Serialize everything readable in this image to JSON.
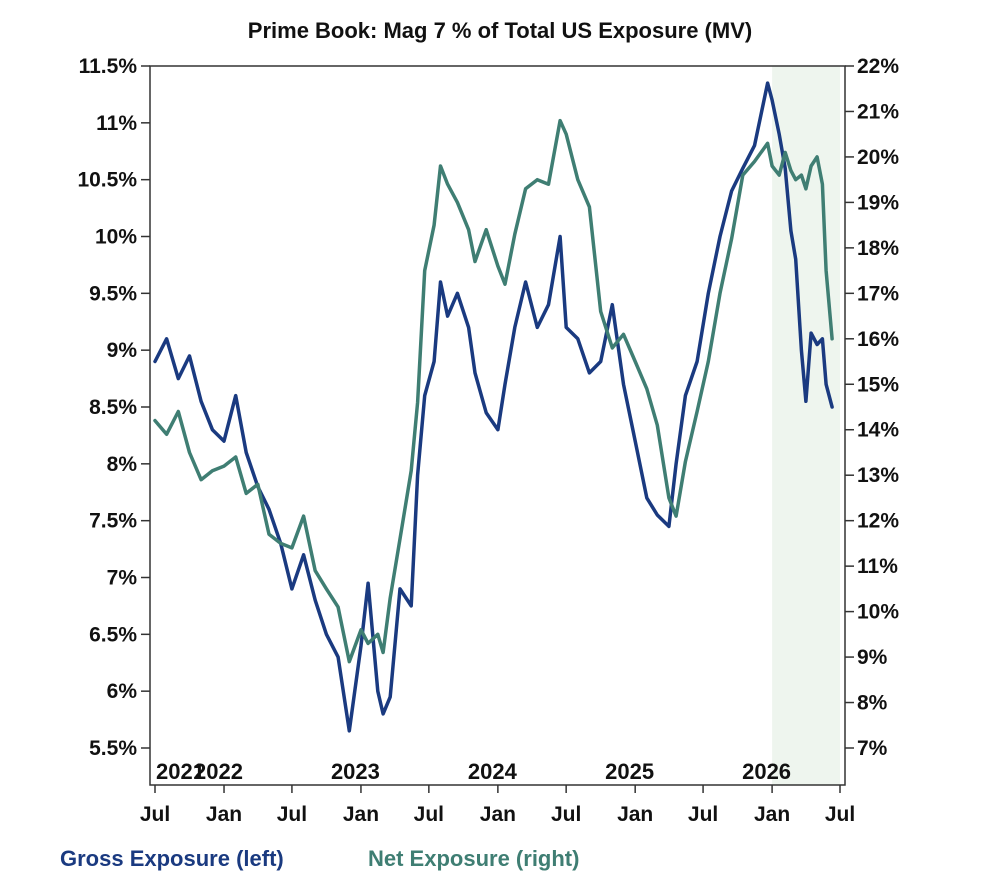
{
  "chart_data": {
    "type": "line",
    "title": "Prime Book: Mag 7 % of Total US Exposure (MV)",
    "x_range": [
      "2021-07-01",
      "2026-07-01"
    ],
    "y_left": {
      "ylim": [
        5.5,
        11.5
      ],
      "ticks": [
        5.5,
        6,
        6.5,
        7,
        7.5,
        8,
        8.5,
        9,
        9.5,
        10,
        10.5,
        11,
        11.5
      ],
      "tick_labels": [
        "5.5%",
        "6%",
        "6.5%",
        "7%",
        "7.5%",
        "8%",
        "8.5%",
        "9%",
        "9.5%",
        "10%",
        "10.5%",
        "11%",
        "11.5%"
      ]
    },
    "y_right": {
      "ylim": [
        7,
        22
      ],
      "ticks": [
        7,
        8,
        9,
        10,
        11,
        12,
        13,
        14,
        15,
        16,
        17,
        18,
        19,
        20,
        21,
        22
      ],
      "tick_labels": [
        "7%",
        "8%",
        "9%",
        "10%",
        "11%",
        "12%",
        "13%",
        "14%",
        "15%",
        "16%",
        "17%",
        "18%",
        "19%",
        "20%",
        "21%",
        "22%"
      ]
    },
    "x_ticks": [
      {
        "date": "2021-07-01",
        "label": "Jul"
      },
      {
        "date": "2022-01-01",
        "label": "Jan"
      },
      {
        "date": "2022-07-01",
        "label": "Jul"
      },
      {
        "date": "2023-01-01",
        "label": "Jan"
      },
      {
        "date": "2023-07-01",
        "label": "Jul"
      },
      {
        "date": "2024-01-01",
        "label": "Jan"
      },
      {
        "date": "2024-07-01",
        "label": "Jul"
      },
      {
        "date": "2025-01-01",
        "label": "Jan"
      },
      {
        "date": "2025-07-01",
        "label": "Jul"
      },
      {
        "date": "2026-01-01",
        "label": "Jan"
      },
      {
        "date": "2026-07-01",
        "label": "Jul"
      }
    ],
    "year_labels": [
      {
        "date": "2021-07-01",
        "label": "2021"
      },
      {
        "date": "2022-01-01",
        "label": "2022"
      },
      {
        "date": "2023-01-01",
        "label": "2023"
      },
      {
        "date": "2024-01-01",
        "label": "2024"
      },
      {
        "date": "2025-01-01",
        "label": "2025"
      },
      {
        "date": "2026-01-01",
        "label": "2026"
      }
    ],
    "shaded_region": {
      "start": "2026-01-01",
      "end": "2026-07-01",
      "color": "#eef5ee"
    },
    "series": [
      {
        "name": "Gross Exposure (left)",
        "axis": "left",
        "color": "#1a3a80",
        "points": [
          [
            "2021-07-01",
            8.9
          ],
          [
            "2021-08-01",
            9.1
          ],
          [
            "2021-09-01",
            8.75
          ],
          [
            "2021-10-01",
            8.95
          ],
          [
            "2021-11-01",
            8.55
          ],
          [
            "2021-12-01",
            8.3
          ],
          [
            "2022-01-01",
            8.2
          ],
          [
            "2022-02-01",
            8.6
          ],
          [
            "2022-03-01",
            8.1
          ],
          [
            "2022-04-01",
            7.8
          ],
          [
            "2022-05-01",
            7.6
          ],
          [
            "2022-06-01",
            7.3
          ],
          [
            "2022-07-01",
            6.9
          ],
          [
            "2022-08-01",
            7.2
          ],
          [
            "2022-09-01",
            6.8
          ],
          [
            "2022-10-01",
            6.5
          ],
          [
            "2022-11-01",
            6.3
          ],
          [
            "2022-12-01",
            5.65
          ],
          [
            "2023-01-01",
            6.4
          ],
          [
            "2023-01-20",
            6.95
          ],
          [
            "2023-02-15",
            6.0
          ],
          [
            "2023-03-01",
            5.8
          ],
          [
            "2023-03-20",
            5.95
          ],
          [
            "2023-04-15",
            6.9
          ],
          [
            "2023-05-15",
            6.75
          ],
          [
            "2023-06-01",
            7.9
          ],
          [
            "2023-06-20",
            8.6
          ],
          [
            "2023-07-15",
            8.9
          ],
          [
            "2023-08-01",
            9.6
          ],
          [
            "2023-08-20",
            9.3
          ],
          [
            "2023-09-15",
            9.5
          ],
          [
            "2023-10-15",
            9.2
          ],
          [
            "2023-11-01",
            8.8
          ],
          [
            "2023-12-01",
            8.45
          ],
          [
            "2024-01-01",
            8.3
          ],
          [
            "2024-01-20",
            8.7
          ],
          [
            "2024-02-15",
            9.2
          ],
          [
            "2024-03-15",
            9.6
          ],
          [
            "2024-04-15",
            9.2
          ],
          [
            "2024-05-15",
            9.4
          ],
          [
            "2024-06-15",
            10.0
          ],
          [
            "2024-07-01",
            9.2
          ],
          [
            "2024-08-01",
            9.1
          ],
          [
            "2024-09-01",
            8.8
          ],
          [
            "2024-10-01",
            8.9
          ],
          [
            "2024-11-01",
            9.4
          ],
          [
            "2024-12-01",
            8.7
          ],
          [
            "2025-01-01",
            8.2
          ],
          [
            "2025-02-01",
            7.7
          ],
          [
            "2025-03-01",
            7.55
          ],
          [
            "2025-04-01",
            7.45
          ],
          [
            "2025-04-20",
            8.0
          ],
          [
            "2025-05-15",
            8.6
          ],
          [
            "2025-06-15",
            8.9
          ],
          [
            "2025-07-15",
            9.5
          ],
          [
            "2025-08-15",
            10.0
          ],
          [
            "2025-09-15",
            10.4
          ],
          [
            "2025-10-15",
            10.6
          ],
          [
            "2025-11-15",
            10.8
          ],
          [
            "2025-12-20",
            11.35
          ],
          [
            "2026-01-01",
            11.2
          ],
          [
            "2026-01-20",
            10.9
          ],
          [
            "2026-02-05",
            10.6
          ],
          [
            "2026-02-20",
            10.05
          ],
          [
            "2026-03-05",
            9.8
          ],
          [
            "2026-03-20",
            9.0
          ],
          [
            "2026-04-01",
            8.55
          ],
          [
            "2026-04-15",
            9.15
          ],
          [
            "2026-05-01",
            9.05
          ],
          [
            "2026-05-15",
            9.1
          ],
          [
            "2026-05-25",
            8.7
          ],
          [
            "2026-06-10",
            8.5
          ]
        ]
      },
      {
        "name": "Net Exposure (right)",
        "axis": "right",
        "color": "#3f7e73",
        "points": [
          [
            "2021-07-01",
            14.2
          ],
          [
            "2021-08-01",
            13.9
          ],
          [
            "2021-09-01",
            14.4
          ],
          [
            "2021-10-01",
            13.5
          ],
          [
            "2021-11-01",
            12.9
          ],
          [
            "2021-12-01",
            13.1
          ],
          [
            "2022-01-01",
            13.2
          ],
          [
            "2022-02-01",
            13.4
          ],
          [
            "2022-03-01",
            12.6
          ],
          [
            "2022-04-01",
            12.8
          ],
          [
            "2022-05-01",
            11.7
          ],
          [
            "2022-06-01",
            11.5
          ],
          [
            "2022-07-01",
            11.4
          ],
          [
            "2022-08-01",
            12.1
          ],
          [
            "2022-09-01",
            10.9
          ],
          [
            "2022-10-01",
            10.5
          ],
          [
            "2022-11-01",
            10.1
          ],
          [
            "2022-12-01",
            8.9
          ],
          [
            "2023-01-01",
            9.6
          ],
          [
            "2023-01-20",
            9.3
          ],
          [
            "2023-02-15",
            9.5
          ],
          [
            "2023-03-01",
            9.1
          ],
          [
            "2023-03-20",
            10.3
          ],
          [
            "2023-04-15",
            11.6
          ],
          [
            "2023-05-15",
            13.1
          ],
          [
            "2023-06-01",
            14.6
          ],
          [
            "2023-06-20",
            17.5
          ],
          [
            "2023-07-15",
            18.5
          ],
          [
            "2023-08-01",
            19.8
          ],
          [
            "2023-08-20",
            19.4
          ],
          [
            "2023-09-15",
            19.0
          ],
          [
            "2023-10-15",
            18.4
          ],
          [
            "2023-11-01",
            17.7
          ],
          [
            "2023-12-01",
            18.4
          ],
          [
            "2024-01-01",
            17.6
          ],
          [
            "2024-01-20",
            17.2
          ],
          [
            "2024-02-15",
            18.3
          ],
          [
            "2024-03-15",
            19.3
          ],
          [
            "2024-04-15",
            19.5
          ],
          [
            "2024-05-15",
            19.4
          ],
          [
            "2024-06-15",
            20.8
          ],
          [
            "2024-07-01",
            20.5
          ],
          [
            "2024-08-01",
            19.5
          ],
          [
            "2024-09-01",
            18.9
          ],
          [
            "2024-10-01",
            16.6
          ],
          [
            "2024-11-01",
            15.8
          ],
          [
            "2024-12-01",
            16.1
          ],
          [
            "2025-01-01",
            15.5
          ],
          [
            "2025-02-01",
            14.9
          ],
          [
            "2025-03-01",
            14.1
          ],
          [
            "2025-04-01",
            12.5
          ],
          [
            "2025-04-20",
            12.1
          ],
          [
            "2025-05-15",
            13.3
          ],
          [
            "2025-06-15",
            14.4
          ],
          [
            "2025-07-15",
            15.5
          ],
          [
            "2025-08-15",
            17.0
          ],
          [
            "2025-09-15",
            18.2
          ],
          [
            "2025-10-15",
            19.6
          ],
          [
            "2025-11-15",
            19.9
          ],
          [
            "2025-12-20",
            20.3
          ],
          [
            "2026-01-01",
            19.8
          ],
          [
            "2026-01-20",
            19.6
          ],
          [
            "2026-02-05",
            20.1
          ],
          [
            "2026-02-20",
            19.7
          ],
          [
            "2026-03-05",
            19.5
          ],
          [
            "2026-03-20",
            19.6
          ],
          [
            "2026-04-01",
            19.3
          ],
          [
            "2026-04-15",
            19.8
          ],
          [
            "2026-05-01",
            20.0
          ],
          [
            "2026-05-15",
            19.4
          ],
          [
            "2026-05-25",
            17.5
          ],
          [
            "2026-06-10",
            16.0
          ]
        ]
      }
    ],
    "legend": {
      "placement": "bottom-left",
      "items": [
        {
          "label": "Gross Exposure (left)",
          "color": "#1a3a80"
        },
        {
          "label": "Net Exposure (right)",
          "color": "#3f7e73"
        }
      ]
    },
    "grid": false
  }
}
